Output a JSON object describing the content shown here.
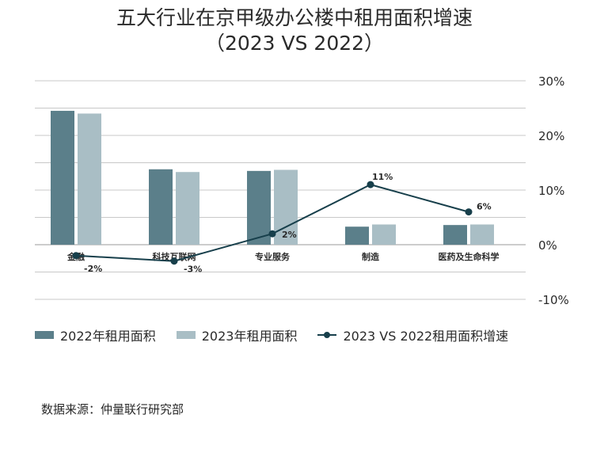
{
  "colors": {
    "series_2022": "#5b7f8a",
    "series_2023": "#a9bec5",
    "growth_line": "#173f4b",
    "grid": "#c8c8c8",
    "text": "#2a2a2a"
  },
  "chart_data": {
    "type": "bar",
    "title": "五大行业在京甲级办公楼中租用面积增速",
    "subtitle": "（2023 VS 2022）",
    "categories": [
      "金融",
      "科技互联网",
      "专业服务",
      "制造",
      "医药及生命科学"
    ],
    "series": [
      {
        "name": "2022年租用面积",
        "kind": "bar",
        "values": [
          24.5,
          13.8,
          13.5,
          3.3,
          3.6
        ]
      },
      {
        "name": "2023年租用面积",
        "kind": "bar",
        "values": [
          24.0,
          13.3,
          13.7,
          3.7,
          3.7
        ]
      },
      {
        "name": "2023 VS 2022租用面积增速",
        "kind": "line",
        "values": [
          -2,
          -3,
          2,
          11,
          6
        ],
        "labels": [
          "-2%",
          "-3%",
          "2%",
          "11%",
          "6%"
        ]
      }
    ],
    "xlabel": "",
    "ylabel": "",
    "ylim": [
      -10,
      30
    ],
    "yticks": [
      30,
      20,
      10,
      0,
      -10
    ],
    "ytick_labels": [
      "30%",
      "20%",
      "10%",
      "0%",
      "-10%"
    ],
    "grid": true,
    "legend_position": "bottom"
  },
  "source": "数据来源：仲量联行研究部"
}
